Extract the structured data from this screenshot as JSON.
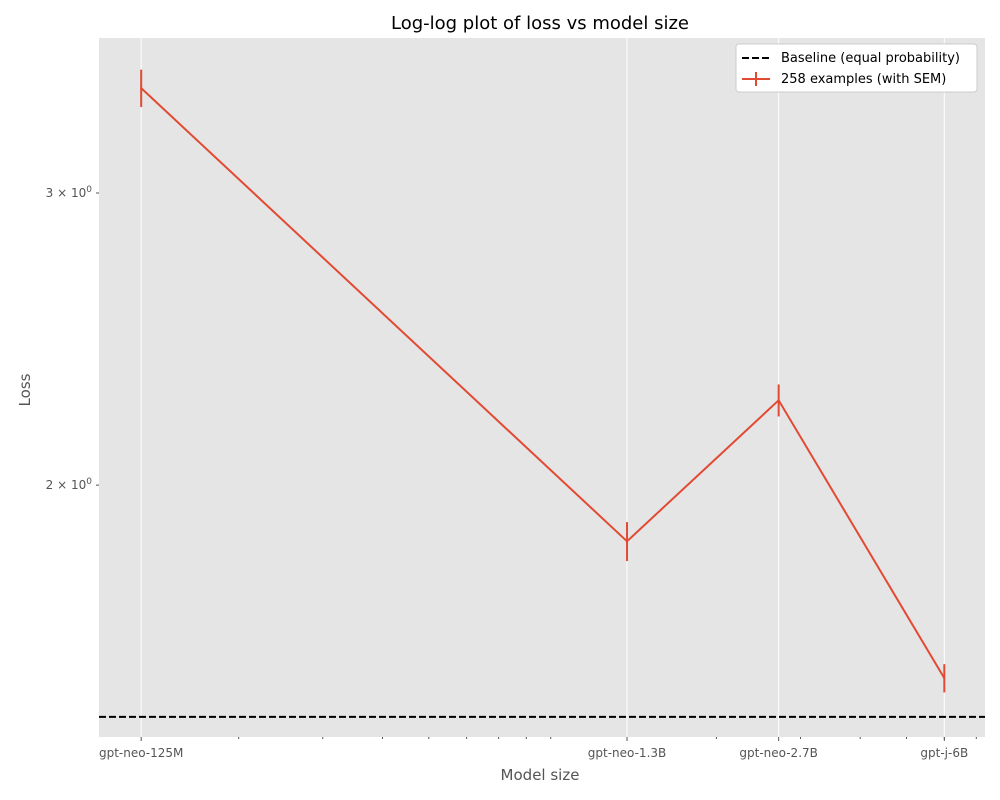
{
  "chart_data": {
    "type": "line",
    "title": "Log-log plot of loss vs model size",
    "xlabel": "Model size",
    "ylabel": "Loss",
    "x_scale": "log",
    "y_scale": "log",
    "x": [
      125000000,
      1300000000,
      2700000000,
      6000000000
    ],
    "categories": [
      "gpt-neo-125M",
      "gpt-neo-1.3B",
      "gpt-neo-2.7B",
      "gpt-j-6B"
    ],
    "xlim": [
      102000000,
      7300000000
    ],
    "ylim": [
      1.41,
      3.72
    ],
    "y_ticks": [
      {
        "value": 2,
        "label": "$2\\times10^{0}$"
      },
      {
        "value": 3,
        "label": "$3\\times10^{0}$"
      }
    ],
    "series": [
      {
        "name": "258 examples (with SEM)",
        "color": "#E24A33",
        "values": [
          3.47,
          1.85,
          2.25,
          1.53
        ],
        "sem": [
          0.09,
          0.05,
          0.05,
          0.03
        ]
      }
    ],
    "reference_lines": [
      {
        "name": "Baseline (equal probability)",
        "y": 1.45,
        "color": "#000000",
        "style": "dashed"
      }
    ],
    "grid": true,
    "legend_position": "top-right",
    "background_color": "#E5E5E5"
  }
}
